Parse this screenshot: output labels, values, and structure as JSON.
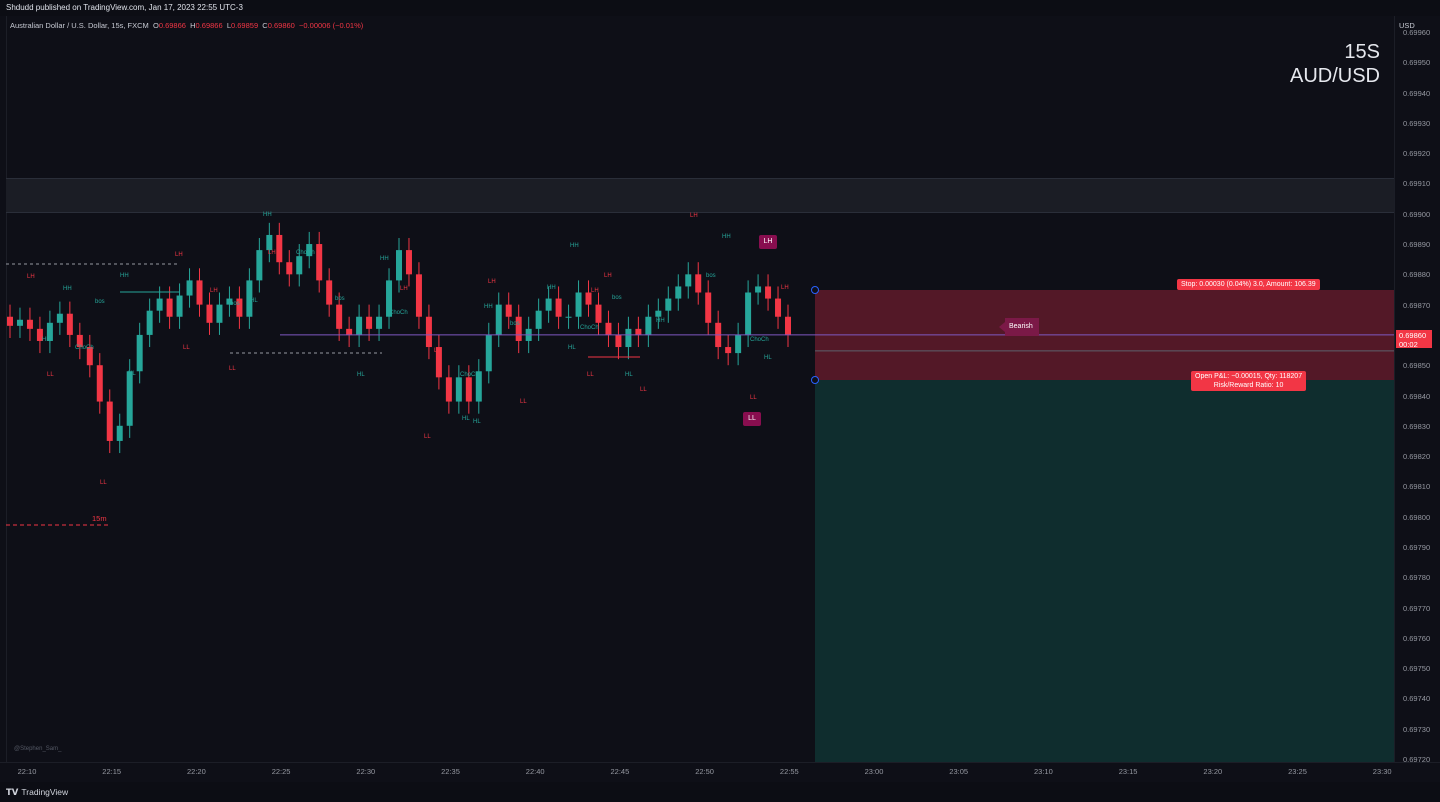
{
  "header": {
    "published": "Shdudd published on TradingView.com, Jan 17, 2023 22:55 UTC-3"
  },
  "legend": {
    "symbol": "Australian Dollar / U.S. Dollar, 15s, FXCM",
    "o_label": "O",
    "o": "0.69866",
    "h_label": "H",
    "h": "0.69866",
    "l_label": "L",
    "l": "0.69859",
    "c_label": "C",
    "c": "0.69860",
    "change": "−0.00006 (−0.01%)"
  },
  "watermark": {
    "line1": "15S",
    "line2": "AUD/USD"
  },
  "price_axis": {
    "currency": "USD",
    "ticks": [
      "0.69960",
      "0.69950",
      "0.69940",
      "0.69930",
      "0.69920",
      "0.69910",
      "0.69900",
      "0.69890",
      "0.69880",
      "0.69870",
      "0.69860",
      "0.69850",
      "0.69840",
      "0.69830",
      "0.69820",
      "0.69810",
      "0.69800",
      "0.69790",
      "0.69780",
      "0.69770",
      "0.69760",
      "0.69750",
      "0.69740",
      "0.69730",
      "0.69720"
    ],
    "current_price": "0.69860",
    "countdown": "00:02"
  },
  "time_axis": {
    "ticks": [
      "22:10",
      "22:15",
      "22:20",
      "22:25",
      "22:30",
      "22:35",
      "22:40",
      "22:45",
      "22:50",
      "22:55",
      "23:00",
      "23:05",
      "23:10",
      "23:15",
      "23:20",
      "23:25",
      "23:30"
    ]
  },
  "position_tool": {
    "stop_label": "Stop: 0.00030 (0.04%) 3.0, Amount: 106.39",
    "open_label_1": "Open P&L: −0.00015, Qty: 118207",
    "open_label_2": "Risk/Reward Ratio: 10"
  },
  "markers": {
    "bearish": "Bearish",
    "lh_tag": "LH",
    "ll_tag": "LL",
    "tf_label": "15m",
    "structure_labels": [
      "HH",
      "HL",
      "LH",
      "LL",
      "bos",
      "ChoCh"
    ]
  },
  "credit": "@Stephen_Sam_",
  "footer": {
    "brand": "TradingView"
  },
  "colors": {
    "up": "#26a69a",
    "down": "#f23645",
    "risk_zone": "#8c2134",
    "reward_zone": "#0f2d2e",
    "tag": "#880e4f"
  },
  "chart_data": {
    "type": "candlestick",
    "title": "",
    "symbol": "AUD/USD",
    "interval": "15s",
    "ylim": [
      0.6972,
      0.6996
    ],
    "x_ticks": [
      "22:10",
      "22:15",
      "22:20",
      "22:25",
      "22:30",
      "22:35",
      "22:40",
      "22:45",
      "22:50",
      "22:55",
      "23:00",
      "23:05",
      "23:10",
      "23:15",
      "23:20",
      "23:25",
      "23:30"
    ],
    "closes": [
      0.69863,
      0.69865,
      0.69862,
      0.69858,
      0.69864,
      0.69867,
      0.6986,
      0.69856,
      0.6985,
      0.69838,
      0.69825,
      0.6983,
      0.69848,
      0.6986,
      0.69868,
      0.69872,
      0.69866,
      0.69873,
      0.69878,
      0.6987,
      0.69864,
      0.6987,
      0.69872,
      0.69866,
      0.69878,
      0.69888,
      0.69893,
      0.69884,
      0.6988,
      0.69886,
      0.6989,
      0.69878,
      0.6987,
      0.69862,
      0.6986,
      0.69866,
      0.69862,
      0.69866,
      0.69878,
      0.69888,
      0.6988,
      0.69866,
      0.69856,
      0.69846,
      0.69838,
      0.69846,
      0.69838,
      0.69848,
      0.6986,
      0.6987,
      0.69866,
      0.69858,
      0.69862,
      0.69868,
      0.69872,
      0.69866,
      0.69866,
      0.69874,
      0.6987,
      0.69864,
      0.6986,
      0.69856,
      0.69862,
      0.6986,
      0.69866,
      0.69868,
      0.69872,
      0.69876,
      0.6988,
      0.69874,
      0.69864,
      0.69856,
      0.69854,
      0.6986,
      0.69874,
      0.69876,
      0.69872,
      0.69866,
      0.6986
    ],
    "current": 0.6986,
    "position": {
      "entry": 0.69861,
      "stop": 0.69874,
      "target": 0.6972
    }
  }
}
